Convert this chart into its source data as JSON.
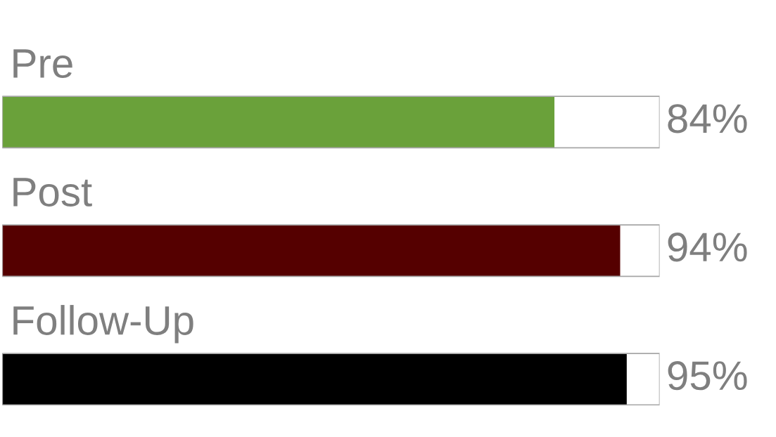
{
  "chart_data": {
    "type": "bar",
    "orientation": "horizontal",
    "categories": [
      "Pre",
      "Post",
      "Follow-Up"
    ],
    "values": [
      84,
      94,
      95
    ],
    "colors": [
      "#6aa13a",
      "#550000",
      "#000000"
    ],
    "xlim": [
      0,
      100
    ],
    "data_labels": true,
    "value_labels": [
      "84%",
      "94%",
      "95%"
    ]
  }
}
